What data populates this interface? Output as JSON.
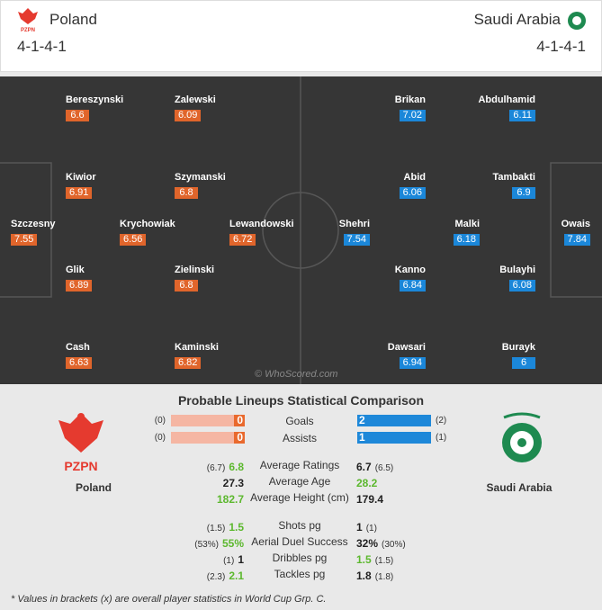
{
  "header": {
    "home": {
      "name": "Poland",
      "formation": "4-1-4-1",
      "logo_text": "PZPN"
    },
    "away": {
      "name": "Saudi Arabia",
      "formation": "4-1-4-1"
    }
  },
  "pitch": {
    "home_players": [
      {
        "name": "Bereszynski",
        "rating": 6.6
      },
      {
        "name": "Zalewski",
        "rating": 6.09
      },
      {
        "name": "Kiwior",
        "rating": 6.91
      },
      {
        "name": "Szymanski",
        "rating": 6.8
      },
      {
        "name": "Szczesny",
        "rating": 7.55
      },
      {
        "name": "Krychowiak",
        "rating": 6.56
      },
      {
        "name": "Lewandowski",
        "rating": 6.72
      },
      {
        "name": "Glik",
        "rating": 6.89
      },
      {
        "name": "Zielinski",
        "rating": 6.8
      },
      {
        "name": "Cash",
        "rating": 6.63
      },
      {
        "name": "Kaminski",
        "rating": 6.82
      }
    ],
    "away_players": [
      {
        "name": "Brikan",
        "rating": 7.02
      },
      {
        "name": "Abdulhamid",
        "rating": 6.11
      },
      {
        "name": "Abid",
        "rating": 6.06
      },
      {
        "name": "Tambakti",
        "rating": 6.9
      },
      {
        "name": "Shehri",
        "rating": 7.54
      },
      {
        "name": "Malki",
        "rating": 6.18
      },
      {
        "name": "Owais",
        "rating": 7.84
      },
      {
        "name": "Kanno",
        "rating": 6.84
      },
      {
        "name": "Bulayhi",
        "rating": 6.08
      },
      {
        "name": "Dawsari",
        "rating": 6.94
      },
      {
        "name": "Burayk",
        "rating": 6
      }
    ],
    "watermark": "© WhoScored.com"
  },
  "comparison": {
    "title": "Probable Lineups Statistical Comparison",
    "bar_stats": [
      {
        "label": "Goals",
        "home": 0,
        "home_overall": "(0)",
        "away": 2,
        "away_overall": "(2)"
      },
      {
        "label": "Assists",
        "home": 0,
        "home_overall": "(0)",
        "away": 1,
        "away_overall": "(1)"
      }
    ],
    "stat_groups": [
      [
        {
          "label": "Average Ratings",
          "home": "6.8",
          "home_overall": "(6.7)",
          "away": "6.7",
          "away_overall": "(6.5)",
          "better": "home"
        },
        {
          "label": "Average Age",
          "home": "27.3",
          "away": "28.2",
          "better": "away"
        },
        {
          "label": "Average Height (cm)",
          "home": "182.7",
          "away": "179.4",
          "better": "home"
        }
      ],
      [
        {
          "label": "Shots pg",
          "home": "1.5",
          "home_overall": "(1.5)",
          "away": "1",
          "away_overall": "(1)",
          "better": "home"
        },
        {
          "label": "Aerial Duel Success",
          "home": "55%",
          "home_overall": "(53%)",
          "away": "32%",
          "away_overall": "(30%)",
          "better": "home"
        },
        {
          "label": "Dribbles pg",
          "home": "1",
          "home_overall": "(1)",
          "away": "1.5",
          "away_overall": "(1.5)",
          "better": "away"
        },
        {
          "label": "Tackles pg",
          "home": "2.1",
          "home_overall": "(2.3)",
          "away": "1.8",
          "away_overall": "(1.8)",
          "better": "home"
        }
      ]
    ]
  },
  "footnote": "* Values in brackets (x) are overall player statistics in World Cup Grp. C."
}
